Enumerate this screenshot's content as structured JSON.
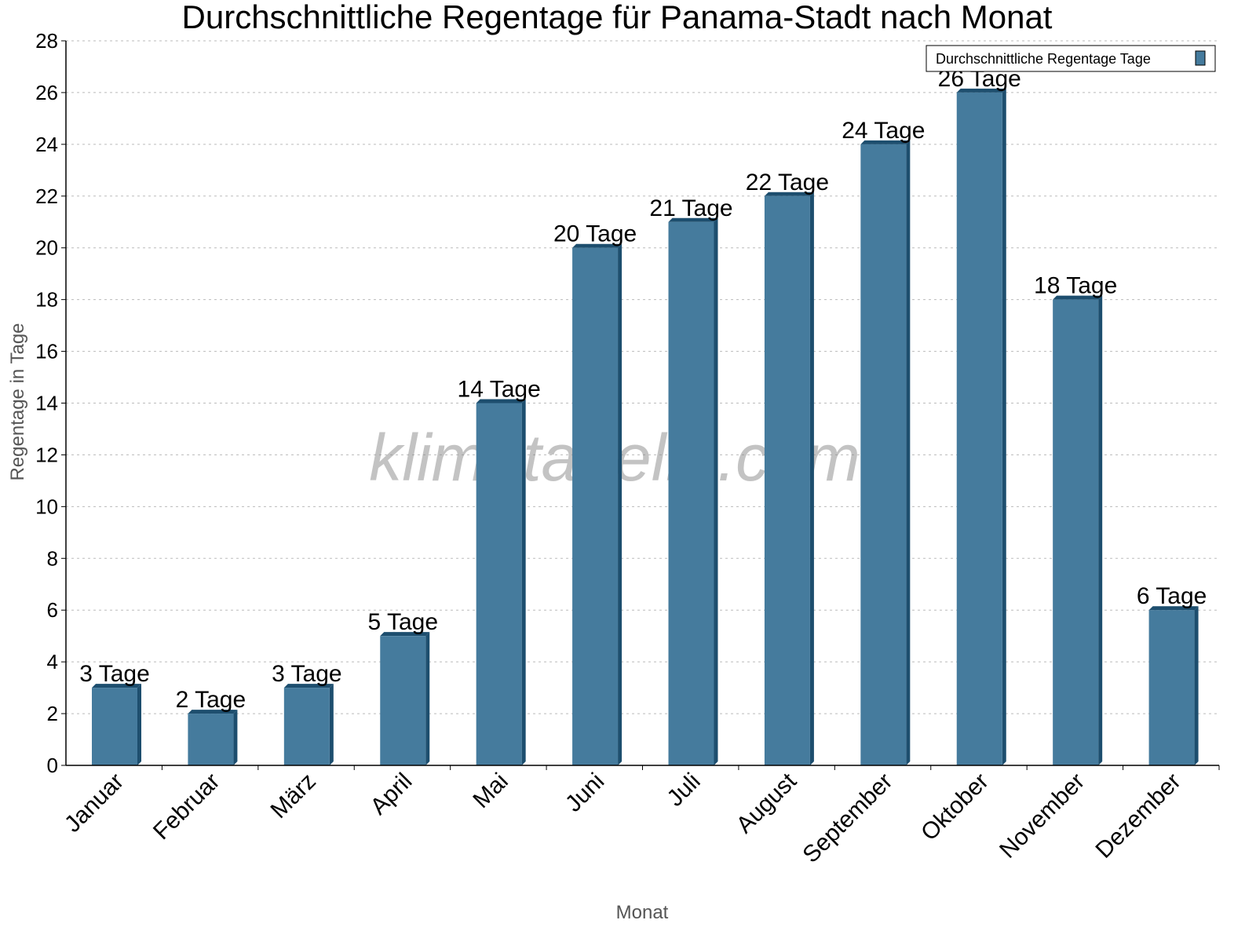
{
  "chart_data": {
    "type": "bar",
    "title": "Durchschnittliche Regentage für Panama-Stadt nach Monat",
    "xlabel": "Monat",
    "ylabel": "Regentage in Tage",
    "ylim": [
      0,
      28
    ],
    "yticks": [
      0,
      2,
      4,
      6,
      8,
      10,
      12,
      14,
      16,
      18,
      20,
      22,
      24,
      26,
      28
    ],
    "grid": true,
    "legend_position": "top-right",
    "categories": [
      "Januar",
      "Februar",
      "März",
      "April",
      "Mai",
      "Juni",
      "Juli",
      "August",
      "September",
      "Oktober",
      "November",
      "Dezember"
    ],
    "series": [
      {
        "name": "Durchschnittliche Regentage Tage",
        "values": [
          3,
          2,
          3,
          5,
          14,
          20,
          21,
          22,
          24,
          26,
          18,
          6
        ]
      }
    ],
    "data_labels": [
      "3 Tage",
      "2 Tage",
      "3 Tage",
      "5 Tage",
      "14 Tage",
      "20 Tage",
      "21 Tage",
      "22 Tage",
      "24 Tage",
      "26 Tage",
      "18 Tage",
      "6 Tage"
    ],
    "colors": {
      "bar": "#457b9d",
      "bar_dark": "#1d4e6e"
    },
    "watermark": "klimatabelle.com"
  }
}
